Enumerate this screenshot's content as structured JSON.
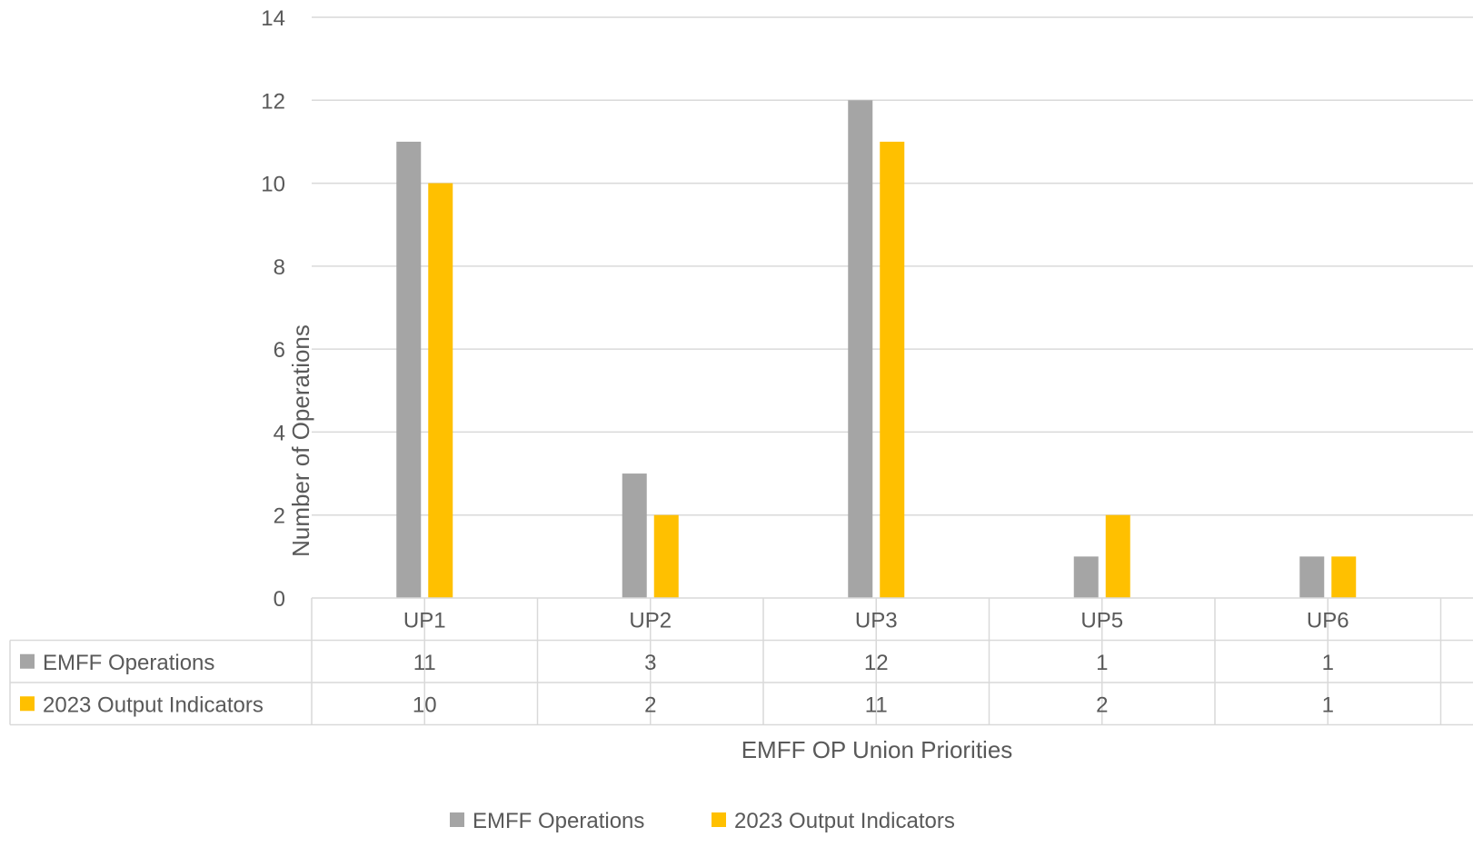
{
  "chart_data": {
    "type": "bar",
    "categories": [
      "UP1",
      "UP2",
      "UP3",
      "UP5",
      "UP6"
    ],
    "series": [
      {
        "name": "EMFF Operations",
        "values": [
          11,
          3,
          12,
          1,
          1
        ],
        "color": "#A5A5A5"
      },
      {
        "name": "2023 Output Indicators",
        "values": [
          10,
          2,
          11,
          2,
          1
        ],
        "color": "#FFC000"
      }
    ],
    "xlabel": "EMFF OP Union Priorities",
    "ylabel": "Number of Operations",
    "ylim": [
      0,
      14
    ],
    "yticks": [
      "0",
      "2",
      "4",
      "6",
      "8",
      "10",
      "12",
      "14"
    ],
    "grid": true,
    "legend_position": "bottom",
    "data_table": true,
    "gridline_color": "#D9D9D9",
    "text_color": "#595959"
  }
}
